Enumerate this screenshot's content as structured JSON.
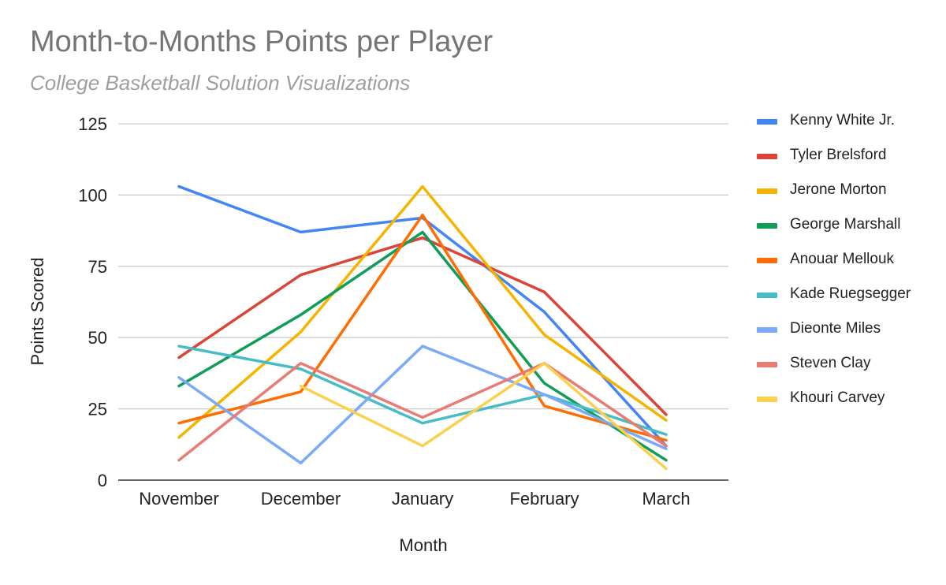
{
  "title": "Month-to-Months Points per Player",
  "subtitle": "College Basketball Solution Visualizations",
  "chart_data": {
    "type": "line",
    "title": "Month-to-Months Points per Player",
    "subtitle": "College Basketball Solution Visualizations",
    "xlabel": "Month",
    "ylabel": "Points Scored",
    "categories": [
      "November",
      "December",
      "January",
      "February",
      "March"
    ],
    "ylim": [
      0,
      125
    ],
    "yticks": [
      0,
      25,
      50,
      75,
      100,
      125
    ],
    "grid": true,
    "legend": "right",
    "series": [
      {
        "name": "Kenny White Jr.",
        "color": "#4285F4",
        "values": [
          103,
          87,
          92,
          59,
          12
        ]
      },
      {
        "name": "Tyler Brelsford",
        "color": "#DB4437",
        "values": [
          43,
          72,
          85,
          66,
          23
        ]
      },
      {
        "name": "Jerone Morton",
        "color": "#F4B400",
        "values": [
          15,
          52,
          103,
          51,
          21
        ]
      },
      {
        "name": "George Marshall",
        "color": "#0F9D58",
        "values": [
          33,
          58,
          87,
          34,
          7
        ]
      },
      {
        "name": "Anouar Mellouk",
        "color": "#FF6D01",
        "values": [
          20,
          31,
          93,
          26,
          14
        ]
      },
      {
        "name": "Kade Ruegsegger",
        "color": "#46BDC6",
        "values": [
          47,
          39,
          20,
          30,
          16
        ]
      },
      {
        "name": "Dieonte Miles",
        "color": "#7BAAF7",
        "values": [
          36,
          6,
          47,
          30,
          11
        ]
      },
      {
        "name": "Steven Clay",
        "color": "#E67C73",
        "values": [
          7,
          41,
          22,
          41,
          12
        ]
      },
      {
        "name": "Khouri Carvey",
        "color": "#FCD04F",
        "values": [
          null,
          33,
          12,
          41,
          4
        ]
      }
    ]
  }
}
